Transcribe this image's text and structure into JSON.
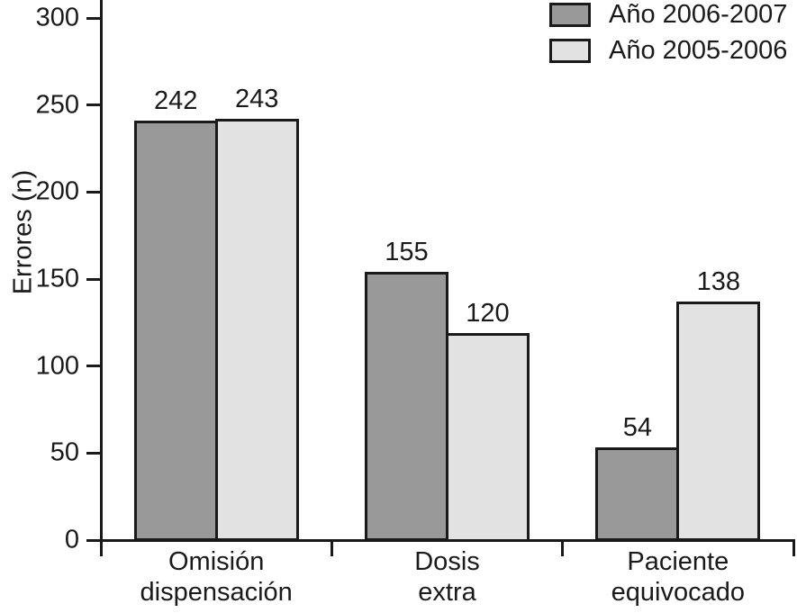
{
  "chart_data": {
    "type": "bar",
    "title": "",
    "ylabel": "Errores (n)",
    "xlabel": "",
    "ylim": [
      0,
      300
    ],
    "yticks": [
      0,
      50,
      100,
      150,
      200,
      250,
      300
    ],
    "grid": false,
    "legend_position": "top-right",
    "bar_value_labels_shown": true,
    "categories": [
      {
        "line1": "Omisión",
        "line2": "dispensación"
      },
      {
        "line1": "Dosis",
        "line2": "extra"
      },
      {
        "line1": "Paciente",
        "line2": "equivocado"
      }
    ],
    "series": [
      {
        "name": "Año 2006-2007",
        "color": "#999999",
        "values": [
          242,
          155,
          54
        ]
      },
      {
        "name": "Año 2005-2006",
        "color": "#e2e2e2",
        "values": [
          243,
          120,
          138
        ]
      }
    ]
  },
  "colors": {
    "axis": "#1a1a1a",
    "text": "#1a1a1a",
    "background": "#ffffff"
  }
}
